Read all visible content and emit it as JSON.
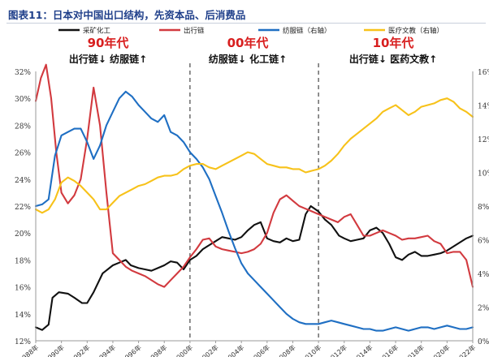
{
  "header": {
    "title": "图表11：日本对中国出口结构，先资本品、后消费品"
  },
  "chart_data": {
    "type": "line",
    "legend": [
      {
        "name": "采矿化工",
        "color": "#111111"
      },
      {
        "name": "出行链",
        "color": "#d23a3f"
      },
      {
        "name": "纺服链（右轴）",
        "color": "#1f6fc3"
      },
      {
        "name": "医疗文教（右轴）",
        "color": "#f7c21a"
      }
    ],
    "eras": [
      {
        "title": "90年代",
        "subtitle": "出行链↓ 纺服链↑"
      },
      {
        "title": "00年代",
        "subtitle": "纺服链↓ 化工链↑"
      },
      {
        "title": "10年代",
        "subtitle": "出行链↓ 医药文教↑"
      }
    ],
    "left_axis": {
      "min": 12,
      "max": 32,
      "ticks": [
        12,
        14,
        16,
        18,
        20,
        22,
        24,
        26,
        28,
        30,
        32
      ],
      "format": "%"
    },
    "right_axis": {
      "min": 0,
      "max": 16,
      "ticks": [
        0,
        2,
        4,
        6,
        8,
        10,
        12,
        14,
        16
      ],
      "format": "%"
    },
    "x_range": [
      1988,
      2022
    ],
    "x_tick_labels": [
      "1988年",
      "1990年",
      "1992年",
      "1994年",
      "1996年",
      "1998年",
      "2000年",
      "2002年",
      "2004年",
      "2006年",
      "2008年",
      "2010年",
      "2012年",
      "2014年",
      "2016年",
      "2018年",
      "2020年",
      "2022年"
    ],
    "dividers": [
      2000,
      2010
    ],
    "series": [
      {
        "name": "采矿化工",
        "axis": "left",
        "color": "#111111",
        "x": [
          1988,
          1988.5,
          1989,
          1989.3,
          1989.8,
          1990.5,
          1991,
          1991.6,
          1992,
          1992.5,
          1993.2,
          1994,
          1994.5,
          1995,
          1995.4,
          1996,
          1996.5,
          1997,
          1997.5,
          1998,
          1998.5,
          1999,
          1999.5,
          2000,
          2000.5,
          2001,
          2001.5,
          2002,
          2002.5,
          2003,
          2003.5,
          2004,
          2004.5,
          2005,
          2005.5,
          2006,
          2006.5,
          2007,
          2007.5,
          2008,
          2008.5,
          2009,
          2009.4,
          2010,
          2010.5,
          2011,
          2011.3,
          2011.6,
          2012,
          2012.5,
          2013,
          2013.5,
          2014,
          2014.5,
          2015,
          2015.5,
          2016,
          2016.5,
          2017,
          2017.5,
          2018,
          2018.5,
          2019,
          2019.5,
          2020,
          2020.5,
          2021,
          2021.5,
          2022
        ],
        "values": [
          13.0,
          12.8,
          13.2,
          15.2,
          15.6,
          15.5,
          15.2,
          14.8,
          14.8,
          15.6,
          17.0,
          17.6,
          17.8,
          18.0,
          17.6,
          17.4,
          17.3,
          17.2,
          17.4,
          17.6,
          17.9,
          17.8,
          17.3,
          18.0,
          18.3,
          18.8,
          19.1,
          19.4,
          19.7,
          19.6,
          19.5,
          19.7,
          20.2,
          20.6,
          20.8,
          19.6,
          19.4,
          19.3,
          19.6,
          19.4,
          19.5,
          21.4,
          22.0,
          21.6,
          21.0,
          20.6,
          20.2,
          19.8,
          19.6,
          19.4,
          19.5,
          19.6,
          20.2,
          20.4,
          20.0,
          19.2,
          18.2,
          18.0,
          18.4,
          18.6,
          18.3,
          18.3,
          18.4,
          18.5,
          18.7,
          19.0,
          19.3,
          19.6,
          19.8
        ]
      },
      {
        "name": "出行链",
        "axis": "left",
        "color": "#d23a3f",
        "x": [
          1988,
          1988.4,
          1988.8,
          1989.2,
          1989.6,
          1990,
          1990.5,
          1991,
          1991.5,
          1992,
          1992.5,
          1993,
          1993.5,
          1994,
          1994.5,
          1995,
          1995.5,
          1996,
          1996.5,
          1997,
          1997.5,
          1998,
          1998.5,
          1999,
          1999.5,
          2000,
          2000.5,
          2001,
          2001.5,
          2002,
          2002.5,
          2003,
          2003.5,
          2004,
          2004.5,
          2005,
          2005.5,
          2006,
          2006.5,
          2007,
          2007.5,
          2008,
          2008.5,
          2009,
          2009.5,
          2010,
          2010.5,
          2011,
          2011.5,
          2012,
          2012.5,
          2013,
          2013.5,
          2014,
          2014.5,
          2015,
          2015.5,
          2016,
          2016.5,
          2017,
          2017.5,
          2018,
          2018.5,
          2019,
          2019.5,
          2020,
          2020.5,
          2021,
          2021.5,
          2022
        ],
        "values": [
          29.8,
          31.5,
          32.5,
          30.0,
          26.0,
          23.0,
          22.2,
          22.8,
          24.0,
          27.0,
          30.8,
          28.0,
          23.0,
          18.5,
          18.0,
          17.5,
          17.2,
          17.0,
          16.8,
          16.5,
          16.2,
          16.0,
          16.5,
          17.0,
          17.5,
          18.2,
          18.8,
          19.5,
          19.6,
          19.0,
          18.8,
          18.7,
          18.6,
          18.5,
          18.6,
          18.8,
          19.2,
          20.0,
          21.5,
          22.5,
          22.8,
          22.4,
          22.0,
          21.8,
          21.6,
          21.4,
          21.2,
          21.0,
          20.8,
          21.2,
          21.4,
          20.6,
          19.8,
          19.8,
          20.0,
          20.2,
          20.0,
          19.8,
          19.5,
          19.6,
          19.6,
          19.7,
          19.8,
          19.4,
          19.2,
          18.5,
          18.6,
          18.6,
          18.0,
          16.0
        ]
      },
      {
        "name": "纺服链（右轴）",
        "axis": "right",
        "color": "#1f6fc3",
        "x": [
          1988,
          1988.5,
          1989,
          1989.5,
          1990,
          1990.5,
          1991,
          1991.5,
          1992,
          1992.5,
          1993,
          1993.5,
          1994,
          1994.5,
          1995,
          1995.5,
          1996,
          1996.5,
          1997,
          1997.5,
          1998,
          1998.5,
          1999,
          1999.5,
          2000,
          2000.5,
          2001,
          2001.5,
          2002,
          2002.5,
          2003,
          2003.5,
          2004,
          2004.5,
          2005,
          2005.5,
          2006,
          2006.5,
          2007,
          2007.5,
          2008,
          2008.5,
          2009,
          2009.5,
          2010,
          2010.5,
          2011,
          2011.5,
          2012,
          2012.5,
          2013,
          2013.5,
          2014,
          2014.5,
          2015,
          2015.5,
          2016,
          2016.5,
          2017,
          2017.5,
          2018,
          2018.5,
          2019,
          2019.5,
          2020,
          2020.5,
          2021,
          2021.5,
          2022
        ],
        "values": [
          8.0,
          8.1,
          8.4,
          11.0,
          12.2,
          12.4,
          12.6,
          12.6,
          11.8,
          10.8,
          11.6,
          12.8,
          13.6,
          14.4,
          14.8,
          14.5,
          14.0,
          13.6,
          13.2,
          13.0,
          13.4,
          12.4,
          12.2,
          11.8,
          11.2,
          10.8,
          10.3,
          9.6,
          8.6,
          7.6,
          6.5,
          5.5,
          4.6,
          4.0,
          3.6,
          3.2,
          2.8,
          2.4,
          2.0,
          1.6,
          1.3,
          1.1,
          1.0,
          1.0,
          1.0,
          1.1,
          1.2,
          1.1,
          1.0,
          0.9,
          0.8,
          0.7,
          0.7,
          0.6,
          0.6,
          0.7,
          0.8,
          0.7,
          0.6,
          0.7,
          0.8,
          0.8,
          0.7,
          0.8,
          0.9,
          0.8,
          0.7,
          0.7,
          0.8
        ]
      },
      {
        "name": "医疗文教（右轴）",
        "axis": "right",
        "color": "#f7c21a",
        "x": [
          1988,
          1988.5,
          1989,
          1989.5,
          1990,
          1990.5,
          1991,
          1991.5,
          1992,
          1992.5,
          1993,
          1993.5,
          1994,
          1994.5,
          1995,
          1995.5,
          1996,
          1996.5,
          1997,
          1997.5,
          1998,
          1998.5,
          1999,
          1999.5,
          2000,
          2000.5,
          2001,
          2001.5,
          2002,
          2002.5,
          2003,
          2003.5,
          2004,
          2004.5,
          2005,
          2005.5,
          2006,
          2006.5,
          2007,
          2007.5,
          2008,
          2008.5,
          2009,
          2009.5,
          2010,
          2010.5,
          2011,
          2011.5,
          2012,
          2012.5,
          2013,
          2013.5,
          2014,
          2014.5,
          2015,
          2015.5,
          2016,
          2016.5,
          2017,
          2017.5,
          2018,
          2018.5,
          2019,
          2019.5,
          2020,
          2020.5,
          2021,
          2021.5,
          2022
        ],
        "values": [
          7.8,
          7.6,
          7.8,
          8.4,
          9.4,
          9.7,
          9.5,
          9.2,
          8.8,
          8.4,
          7.8,
          7.8,
          8.2,
          8.6,
          8.8,
          9.0,
          9.2,
          9.3,
          9.5,
          9.7,
          9.8,
          9.8,
          9.9,
          10.2,
          10.4,
          10.5,
          10.5,
          10.3,
          10.2,
          10.4,
          10.6,
          10.8,
          11.0,
          11.2,
          11.1,
          10.8,
          10.5,
          10.4,
          10.3,
          10.3,
          10.2,
          10.2,
          10.0,
          10.1,
          10.2,
          10.4,
          10.7,
          11.1,
          11.6,
          12.0,
          12.3,
          12.6,
          12.9,
          13.2,
          13.6,
          13.8,
          14.0,
          13.7,
          13.4,
          13.6,
          13.9,
          14.0,
          14.1,
          14.3,
          14.4,
          14.2,
          13.8,
          13.6,
          13.3
        ]
      }
    ]
  }
}
